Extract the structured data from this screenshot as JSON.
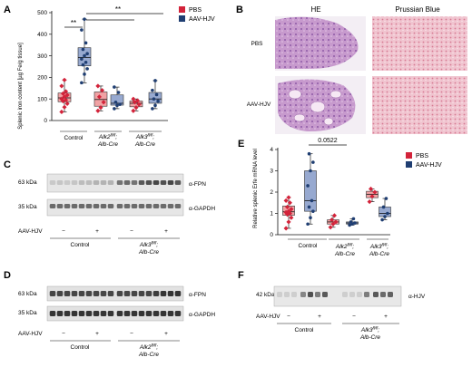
{
  "figure": {
    "colors": {
      "pbs": "#d3233a",
      "aav": "#1f3e72",
      "pbs_box": "#f1a2a4",
      "aav_box": "#97a9d0"
    },
    "panels": {
      "A": {
        "label": "A",
        "legend": [
          "PBS",
          "AAV-HJV"
        ],
        "significance": [
          "**",
          "**"
        ],
        "group_labels": {
          "control": "Control",
          "alk2_line1": "Alk2",
          "alk2_sup": "fl/fl",
          "alk2_line2": ";",
          "alk2_line3": "Alb-Cre",
          "alk3_line1": "Alk3",
          "alk3_sup": "fl/fl",
          "alk3_line2": ";",
          "alk3_line3": "Alb-Cre"
        }
      },
      "B": {
        "label": "B",
        "col_titles": [
          "HE",
          "Prussian Blue"
        ],
        "row_labels": [
          "PBS",
          "AAV-HJV"
        ]
      },
      "C": {
        "label": "C",
        "kda": [
          "63 kDa",
          "35 kDa"
        ],
        "bands": [
          "α-FPN",
          "α-GAPDH"
        ],
        "treatment": "AAV-HJV",
        "signs": [
          "−",
          "+",
          "−",
          "+"
        ],
        "groups": [
          "Control",
          "Alk3",
          "fl/fl",
          ";",
          "Alb-Cre"
        ]
      },
      "D": {
        "label": "D",
        "kda": [
          "63 kDa",
          "35 kDa"
        ],
        "bands": [
          "α-FPN",
          "α-GAPDH"
        ],
        "treatment": "AAV-HJV",
        "signs": [
          "−",
          "+",
          "−",
          "+"
        ],
        "groups": [
          "Control",
          "Alk2",
          "fl/fl",
          ";",
          "Alb-Cre"
        ]
      },
      "E": {
        "label": "E",
        "legend": [
          "PBS",
          "AAV-HJV"
        ],
        "pvalue": "0.0522",
        "group_labels": {
          "control": "Control",
          "alk2_line1": "Alk2",
          "alk2_sup": "fl/fl",
          "alk2_line2": ";",
          "alk2_line3": "Alb-Cre",
          "alk3_line1": "Alk3",
          "alk3_sup": "fl/fl",
          "alk3_line2": ";",
          "alk3_line3": "Alb-Cre"
        }
      },
      "F": {
        "label": "F",
        "kda": [
          "42 kDa"
        ],
        "bands": [
          "α-HJV"
        ],
        "treatment": "AAV-HJV",
        "signs": [
          "−",
          "+",
          "−",
          "+"
        ],
        "groups": [
          "Control",
          "Alk3",
          "fl/fl",
          ";",
          "Alb-Cre"
        ]
      }
    }
  },
  "chart_data": [
    {
      "panel": "A",
      "type": "box",
      "ylabel": "Splenic iron content [µg Fe/g tissue]",
      "ylim": [
        0,
        500
      ],
      "yticks": [
        0,
        100,
        200,
        300,
        400,
        500
      ],
      "groups": [
        {
          "name": "Control PBS",
          "series": "PBS",
          "points": [
            40,
            62,
            78,
            90,
            95,
            100,
            110,
            118,
            125,
            135,
            160,
            188
          ]
        },
        {
          "name": "Control AAV-HJV",
          "series": "AAV-HJV",
          "points": [
            175,
            215,
            240,
            258,
            270,
            285,
            300,
            310,
            330,
            360,
            420,
            470
          ]
        },
        {
          "name": "Alk2 PBS",
          "series": "PBS",
          "points": [
            45,
            60,
            85,
            110,
            140,
            160
          ]
        },
        {
          "name": "Alk2 AAV-HJV",
          "series": "AAV-HJV",
          "points": [
            55,
            70,
            75,
            85,
            130,
            155
          ]
        },
        {
          "name": "Alk3 PBS",
          "series": "PBS",
          "points": [
            45,
            60,
            75,
            85,
            92,
            100
          ]
        },
        {
          "name": "Alk3 AAV-HJV",
          "series": "AAV-HJV",
          "points": [
            55,
            70,
            90,
            100,
            120,
            140,
            185
          ]
        }
      ]
    },
    {
      "panel": "E",
      "type": "box",
      "ylabel": "Relative splenic Erfe mRNA level",
      "ylim": [
        0,
        4
      ],
      "yticks": [
        0,
        1,
        2,
        3,
        4
      ],
      "groups": [
        {
          "name": "Control PBS",
          "series": "PBS",
          "points": [
            0.3,
            0.6,
            0.8,
            0.95,
            1.0,
            1.05,
            1.1,
            1.2,
            1.3,
            1.5,
            1.6,
            1.75
          ]
        },
        {
          "name": "Control AAV-HJV",
          "series": "AAV-HJV",
          "points": [
            0.5,
            0.8,
            1.1,
            1.3,
            1.6,
            2.3,
            3.0,
            3.4,
            3.8
          ]
        },
        {
          "name": "Alk2 PBS",
          "series": "PBS",
          "points": [
            0.35,
            0.5,
            0.6,
            0.7,
            0.9
          ]
        },
        {
          "name": "Alk2 AAV-HJV",
          "series": "AAV-HJV",
          "points": [
            0.45,
            0.5,
            0.55,
            0.6,
            0.75
          ]
        },
        {
          "name": "Alk3 PBS",
          "series": "PBS",
          "points": [
            1.55,
            1.8,
            2.0,
            2.15
          ]
        },
        {
          "name": "Alk3 AAV-HJV",
          "series": "AAV-HJV",
          "points": [
            0.7,
            0.85,
            1.0,
            1.3,
            1.7
          ]
        }
      ]
    }
  ]
}
